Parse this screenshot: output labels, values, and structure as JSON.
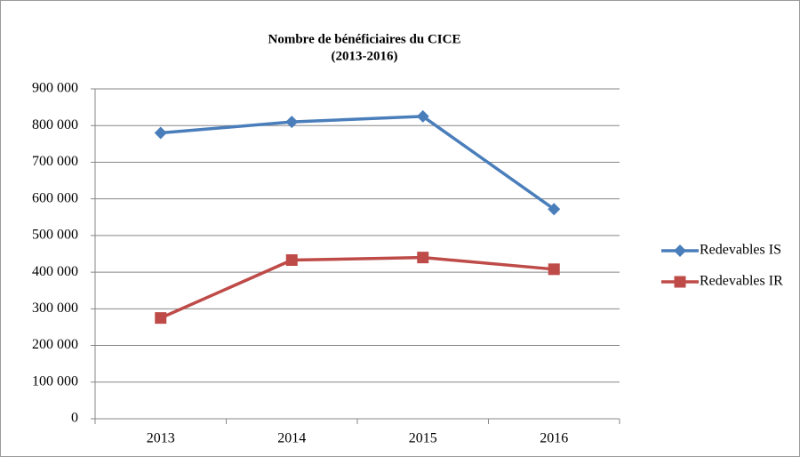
{
  "chart_data": {
    "type": "line",
    "title": "Nombre de bénéficiaires du CICE",
    "subtitle": "(2013-2016)",
    "categories": [
      "2013",
      "2014",
      "2015",
      "2016"
    ],
    "series": [
      {
        "name": "Redevables IS",
        "color": "#4a7ebb",
        "marker": "diamond",
        "values": [
          780000,
          810000,
          825000,
          572000
        ]
      },
      {
        "name": "Redevables IR",
        "color": "#be4b48",
        "marker": "square",
        "values": [
          275000,
          433000,
          440000,
          408000
        ]
      }
    ],
    "ylim": [
      0,
      900000
    ],
    "yticks": [
      0,
      {
        "value": 100000,
        "label": "100 000"
      },
      {
        "value": 200000,
        "label": "200 000"
      },
      {
        "value": 300000,
        "label": "300 000"
      },
      {
        "value": 400000,
        "label": "400 000"
      },
      {
        "value": 500000,
        "label": "500 000"
      },
      {
        "value": 600000,
        "label": "600 000"
      },
      {
        "value": 700000,
        "label": "700 000"
      },
      {
        "value": 800000,
        "label": "800 000"
      },
      {
        "value": 900000,
        "label": "900 000"
      }
    ],
    "grid": true,
    "legend": "right"
  }
}
